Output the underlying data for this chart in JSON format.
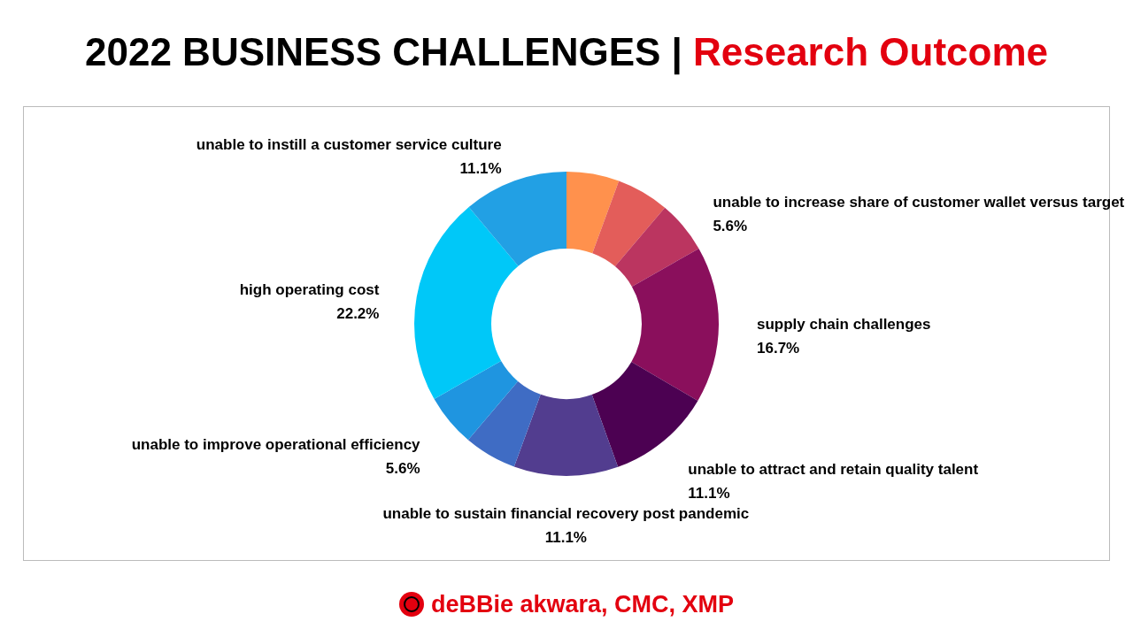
{
  "chart_data": {
    "type": "donut",
    "title": "2022 BUSINESS CHALLENGES |",
    "subtitle": "Research Outcome",
    "categories": [
      null,
      null,
      "unable to increase share of customer wallet versus target",
      "supply chain challenges",
      "unable to attract and retain quality talent",
      "unable to sustain financial recovery post pandemic",
      null,
      "unable to improve operational efficiency",
      "high operating cost",
      "unable to instill a customer service culture"
    ],
    "values": [
      5.6,
      5.6,
      5.6,
      16.7,
      11.1,
      11.1,
      5.6,
      5.6,
      22.2,
      11.1
    ],
    "value_labels": [
      null,
      null,
      "5.6%",
      "16.7%",
      "11.1%",
      "11.1%",
      null,
      "5.6%",
      "22.2%",
      "11.1%"
    ],
    "colors": [
      "#ff914d",
      "#e35d5a",
      "#bb3560",
      "#8a0f5c",
      "#4c0152",
      "#523d8f",
      "#3f6cc4",
      "#1f95e0",
      "#00c8f8",
      "#22a0e4"
    ],
    "legend": false,
    "annotations": [
      "deBBie akwara, CMC, XMP"
    ]
  }
}
